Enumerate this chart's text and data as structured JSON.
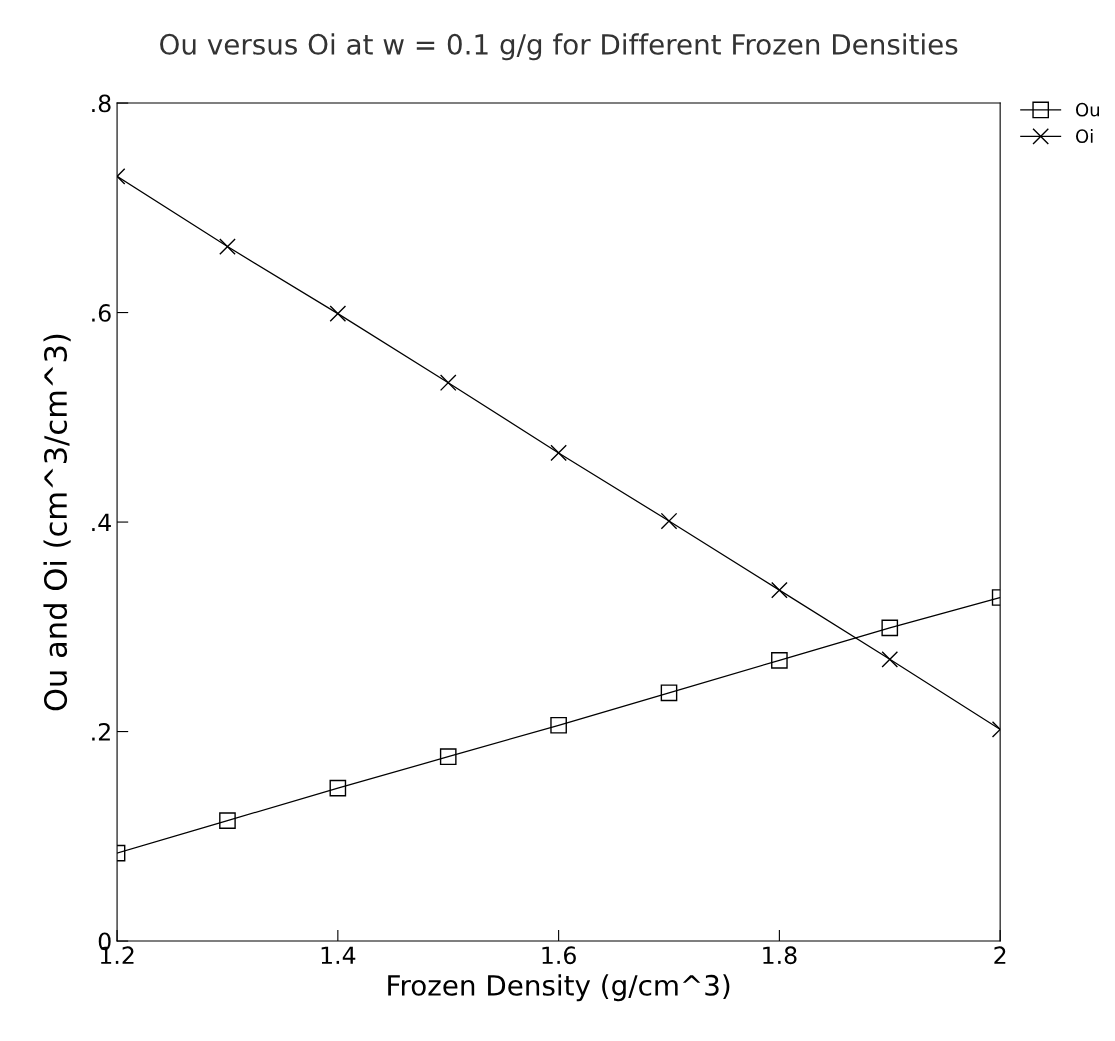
{
  "chart_data": {
    "type": "line",
    "title": "Ou versus Oi at w = 0.1 g/g for Different Frozen Densities",
    "xlabel": "Frozen Density (g/cm^3)",
    "ylabel": "Ou and Oi (cm^3/cm^3)",
    "x": [
      1.2,
      1.3,
      1.4,
      1.5,
      1.6,
      1.7,
      1.8,
      1.9,
      2.0
    ],
    "series": [
      {
        "name": "Ou",
        "color": "#000000",
        "marker": "square",
        "values": [
          0.084,
          0.115,
          0.146,
          0.176,
          0.206,
          0.237,
          0.268,
          0.299,
          0.328
        ]
      },
      {
        "name": "Oi",
        "color": "#000000",
        "marker": "cross",
        "values": [
          0.73,
          0.663,
          0.599,
          0.533,
          0.466,
          0.401,
          0.335,
          0.269,
          0.202
        ]
      }
    ],
    "xlim": [
      1.2,
      2.0
    ],
    "ylim": [
      0,
      0.8
    ],
    "xticks": [
      {
        "value": 1.2,
        "label": "1.2"
      },
      {
        "value": 1.4,
        "label": "1.4"
      },
      {
        "value": 1.6,
        "label": "1.6"
      },
      {
        "value": 1.8,
        "label": "1.8"
      },
      {
        "value": 2.0,
        "label": "2"
      }
    ],
    "yticks": [
      0,
      {
        "value": 0.2,
        "label": ".2"
      },
      {
        "value": 0.4,
        "label": ".4"
      },
      {
        "value": 0.6,
        "label": ".6"
      },
      {
        "value": 0.8,
        "label": ".8"
      }
    ],
    "grid": false,
    "legend": "top right",
    "line_style": "solid"
  }
}
